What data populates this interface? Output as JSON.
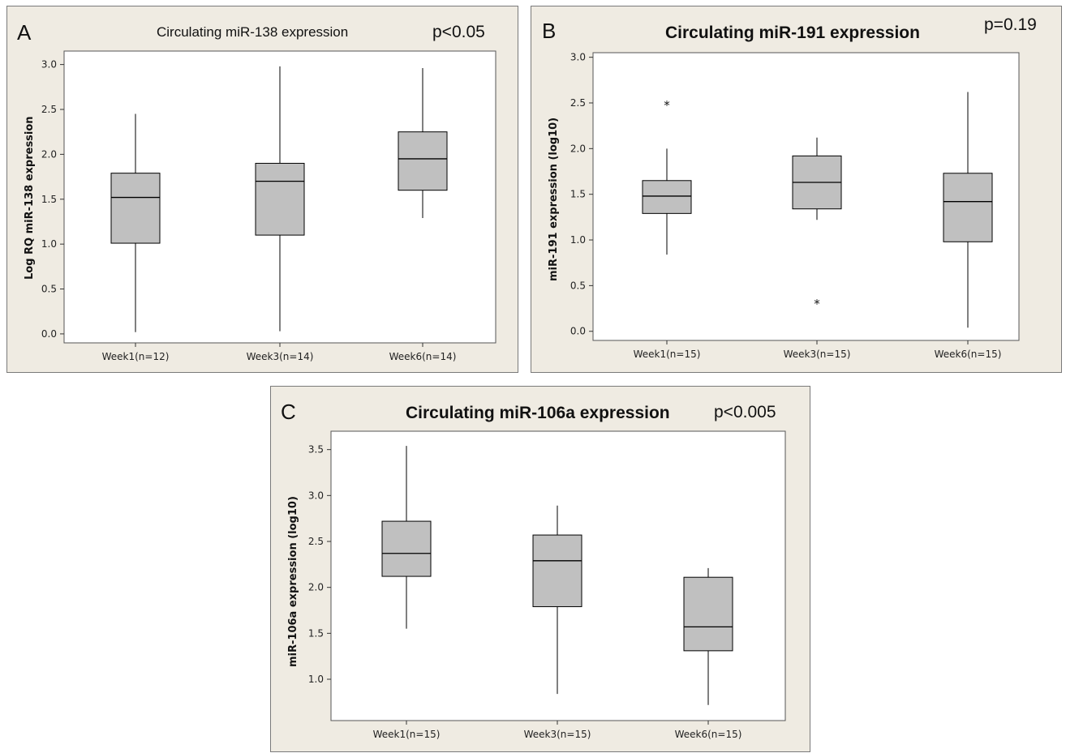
{
  "chart_data": [
    {
      "type": "boxplot",
      "panel_letter": "A",
      "title": "Circulating miR-138 expression",
      "p_value": "p<0.05",
      "xlabel": "",
      "ylabel": "Log RQ miR-138 expression",
      "ylim": [
        -0.1,
        3.15
      ],
      "yticks": [
        0.0,
        0.5,
        1.0,
        1.5,
        2.0,
        2.5,
        3.0
      ],
      "ytick_labels": [
        "0.0",
        "0.5",
        "1.0",
        "1.5",
        "2.0",
        "2.5",
        "3.0"
      ],
      "categories": [
        "Week1(n=12)",
        "Week3(n=14)",
        "Week6(n=14)"
      ],
      "boxes": [
        {
          "whisker_low": 0.02,
          "q1": 1.01,
          "median": 1.52,
          "q3": 1.79,
          "whisker_high": 2.45,
          "outliers": []
        },
        {
          "whisker_low": 0.03,
          "q1": 1.1,
          "median": 1.7,
          "q3": 1.9,
          "whisker_high": 2.98,
          "outliers": []
        },
        {
          "whisker_low": 1.29,
          "q1": 1.6,
          "median": 1.95,
          "q3": 2.25,
          "whisker_high": 2.96,
          "outliers": []
        }
      ]
    },
    {
      "type": "boxplot",
      "panel_letter": "B",
      "title": "Circulating miR-191 expression",
      "p_value": "p=0.19",
      "xlabel": "",
      "ylabel": "miR-191 expression (log10)",
      "ylim": [
        -0.1,
        3.05
      ],
      "yticks": [
        0.0,
        0.5,
        1.0,
        1.5,
        2.0,
        2.5,
        3.0
      ],
      "ytick_labels": [
        "0.0",
        "0.5",
        "1.0",
        "1.5",
        "2.0",
        "2.5",
        "3.0"
      ],
      "categories": [
        "Week1(n=15)",
        "Week3(n=15)",
        "Week6(n=15)"
      ],
      "boxes": [
        {
          "whisker_low": 0.84,
          "q1": 1.29,
          "median": 1.48,
          "q3": 1.65,
          "whisker_high": 2.0,
          "outliers": [
            2.48
          ]
        },
        {
          "whisker_low": 1.22,
          "q1": 1.34,
          "median": 1.63,
          "q3": 1.92,
          "whisker_high": 2.12,
          "outliers": [
            0.31
          ]
        },
        {
          "whisker_low": 0.04,
          "q1": 0.98,
          "median": 1.42,
          "q3": 1.73,
          "whisker_high": 2.62,
          "outliers": []
        }
      ]
    },
    {
      "type": "boxplot",
      "panel_letter": "C",
      "title": "Circulating miR-106a expression",
      "p_value": "p<0.005",
      "xlabel": "",
      "ylabel": "miR-106a expression (log10)",
      "ylim": [
        0.55,
        3.7
      ],
      "yticks": [
        1.0,
        1.5,
        2.0,
        2.5,
        3.0,
        3.5
      ],
      "ytick_labels": [
        "1.0",
        "1.5",
        "2.0",
        "2.5",
        "3.0",
        "3.5"
      ],
      "categories": [
        "Week1(n=15)",
        "Week3(n=15)",
        "Week6(n=15)"
      ],
      "boxes": [
        {
          "whisker_low": 1.55,
          "q1": 2.12,
          "median": 2.37,
          "q3": 2.72,
          "whisker_high": 3.54,
          "outliers": []
        },
        {
          "whisker_low": 0.84,
          "q1": 1.79,
          "median": 2.29,
          "q3": 2.57,
          "whisker_high": 2.89,
          "outliers": []
        },
        {
          "whisker_low": 0.72,
          "q1": 1.31,
          "median": 1.57,
          "q3": 2.11,
          "whisker_high": 2.21,
          "outliers": []
        }
      ]
    }
  ],
  "colors": {
    "panel_background": "#efebe2",
    "plot_background": "#ffffff",
    "box_fill": "#c0c0c0",
    "line": "#000000"
  }
}
